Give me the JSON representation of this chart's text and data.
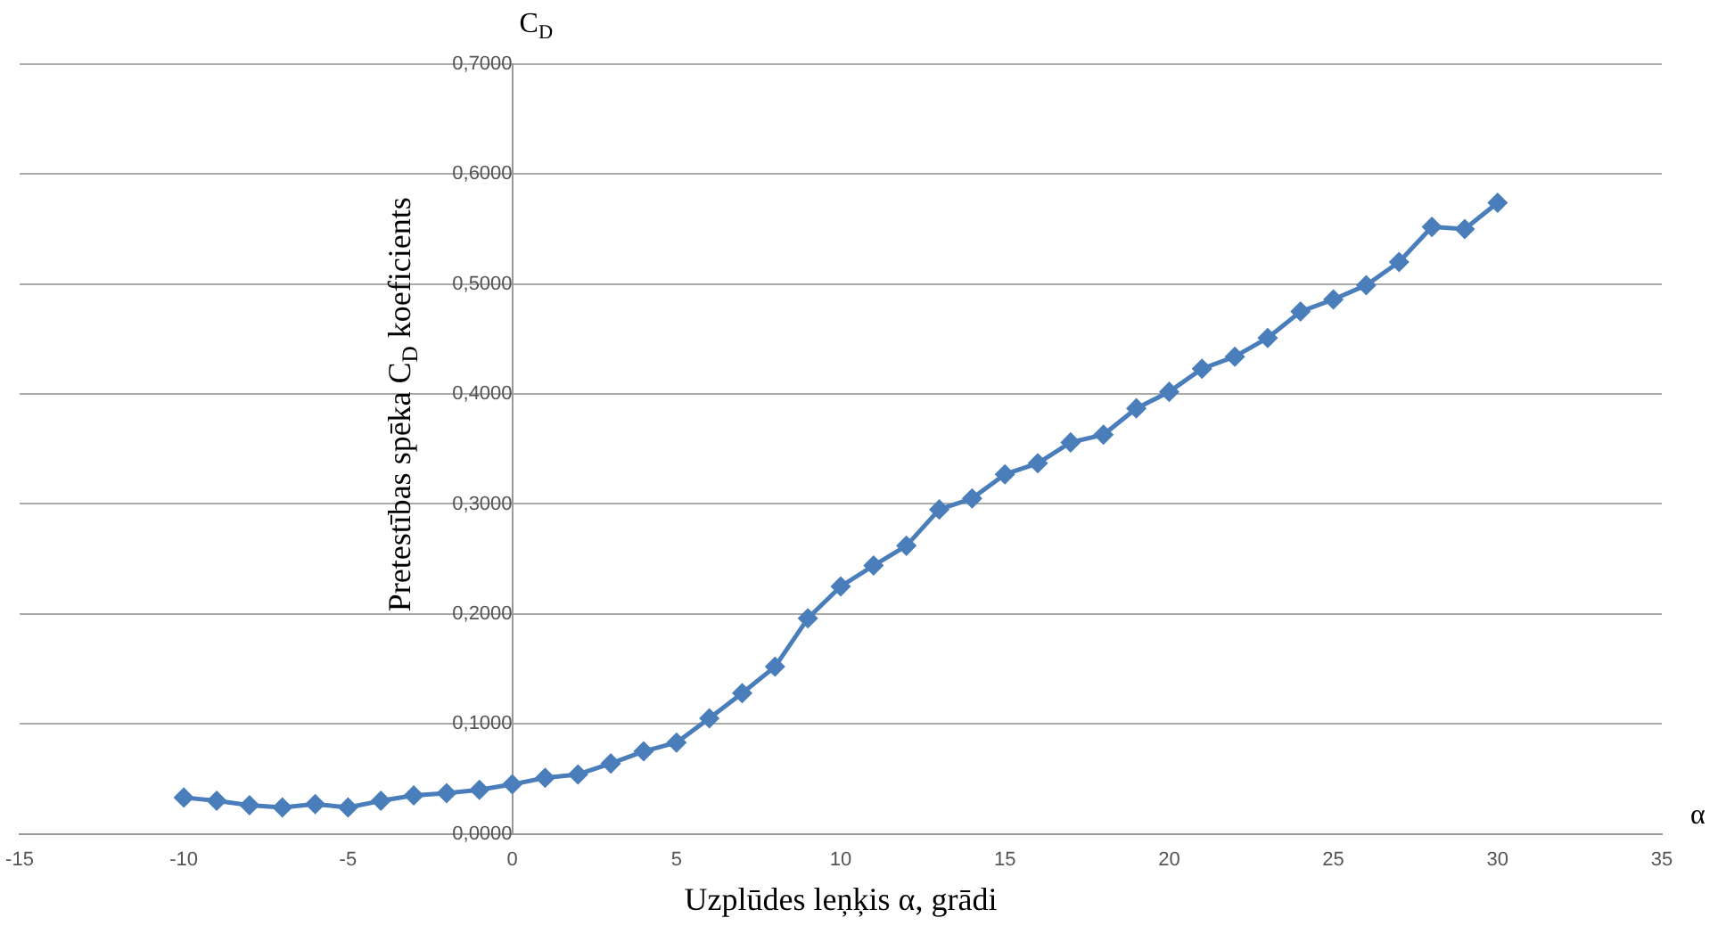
{
  "chart_data": {
    "type": "line",
    "xlabel": "Uzplūdes leņķis α, grādi",
    "ylabel": "Pretestības spēka C$_{D}$ koeficients",
    "annotations": [
      "C$_{D}$",
      "α"
    ],
    "x": [
      -10,
      -9,
      -8,
      -7,
      -6,
      -5,
      -4,
      -3,
      -2,
      -1,
      0,
      1,
      2,
      3,
      4,
      5,
      6,
      7,
      8,
      9,
      10,
      11,
      12,
      13,
      14,
      15,
      16,
      17,
      18,
      19,
      20,
      21,
      22,
      23,
      24,
      25,
      26,
      27,
      28,
      29,
      30
    ],
    "series": [
      {
        "color": "#4a7ebb",
        "values": [
          0.033,
          0.03,
          0.026,
          0.024,
          0.027,
          0.024,
          0.03,
          0.035,
          0.037,
          0.04,
          0.045,
          0.051,
          0.054,
          0.064,
          0.075,
          0.083,
          0.105,
          0.128,
          0.152,
          0.196,
          0.225,
          0.244,
          0.262,
          0.295,
          0.305,
          0.327,
          0.337,
          0.356,
          0.363,
          0.387,
          0.402,
          0.423,
          0.434,
          0.451,
          0.475,
          0.486,
          0.499,
          0.52,
          0.552,
          0.55,
          0.574
        ]
      }
    ],
    "xlim": [
      -15,
      35
    ],
    "xticks": [
      -15,
      -10,
      -5,
      0,
      5,
      10,
      15,
      20,
      25,
      30,
      35
    ],
    "ylim": [
      0,
      0.7
    ],
    "yticks": [
      {
        "value": 0,
        "label": "0,0000"
      },
      {
        "value": 0.1,
        "label": "0,1000"
      },
      {
        "value": 0.2,
        "label": "0,2000"
      },
      {
        "value": 0.3,
        "label": "0,3000"
      },
      {
        "value": 0.4,
        "label": "0,4000"
      },
      {
        "value": 0.5,
        "label": "0,5000"
      },
      {
        "value": 0.6,
        "label": "0,6000"
      },
      {
        "value": 0.7,
        "label": "0,7000"
      }
    ],
    "grid": "y",
    "legend": false,
    "marker": "diamond",
    "line_style": "solid"
  }
}
